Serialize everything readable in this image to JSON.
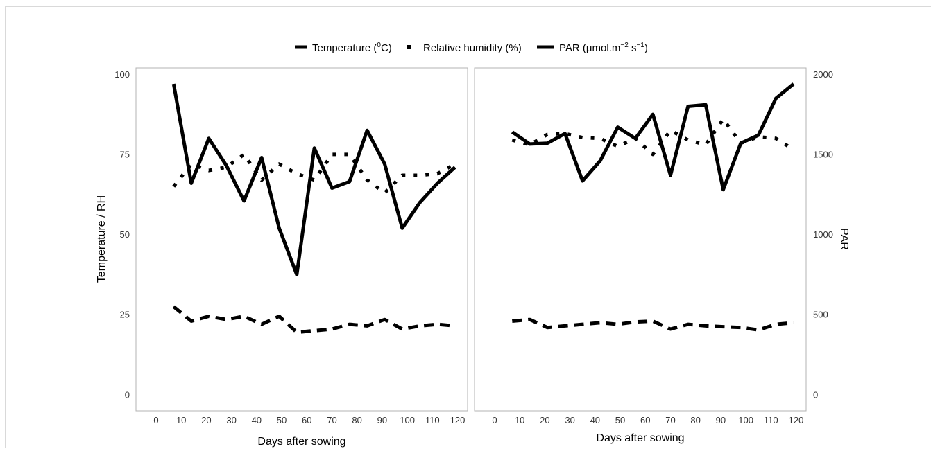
{
  "chart_data": [
    {
      "panel": "left",
      "type": "line",
      "xlabel": "Days after sowing",
      "ylabel": "Temperature / RH",
      "xlim": [
        -8,
        124
      ],
      "ylim": [
        -5,
        102
      ],
      "xticks": [
        "0",
        "10",
        "20",
        "30",
        "40",
        "50",
        "60",
        "70",
        "80",
        "90",
        "100",
        "110",
        "120"
      ],
      "yticks": [
        "0",
        "25",
        "50",
        "75",
        "100"
      ],
      "x": [
        7,
        14,
        21,
        28,
        35,
        42,
        49,
        56,
        63,
        70,
        77,
        84,
        91,
        98,
        105,
        112,
        119
      ],
      "series": [
        {
          "name": "Temperature (⁰C)",
          "style": "dashed",
          "values": [
            27.5,
            23.0,
            24.5,
            23.5,
            24.5,
            22.0,
            24.5,
            19.5,
            20.0,
            20.5,
            22.0,
            21.5,
            23.5,
            20.5,
            21.5,
            22.0,
            21.5
          ]
        },
        {
          "name": "Relative humidity (%)",
          "style": "dotted",
          "values": [
            65,
            72,
            70,
            71,
            75,
            67,
            72,
            69,
            67,
            75,
            75,
            67,
            63,
            68.5,
            68.5,
            69,
            72
          ]
        },
        {
          "name": "PAR (μmol.m⁻² s⁻¹)",
          "style": "solid",
          "values": [
            97,
            66,
            80,
            71.5,
            60.5,
            74,
            52,
            37.5,
            77,
            64.5,
            66.5,
            82.5,
            72,
            52,
            60,
            66,
            71
          ]
        }
      ]
    },
    {
      "panel": "right",
      "type": "line",
      "xlabel": "Days after sowing",
      "ylabel": "PAR",
      "xlim": [
        -8,
        124
      ],
      "ylim": [
        -100,
        2040
      ],
      "xticks": [
        "0",
        "10",
        "20",
        "30",
        "40",
        "50",
        "60",
        "70",
        "80",
        "90",
        "100",
        "110",
        "120"
      ],
      "yticks": [
        "0",
        "500",
        "1000",
        "1500",
        "2000"
      ],
      "x": [
        7,
        14,
        21,
        28,
        35,
        42,
        49,
        56,
        63,
        70,
        77,
        84,
        91,
        98,
        105,
        112,
        119
      ],
      "series": [
        {
          "name": "Temperature (⁰C)",
          "style": "dashed",
          "values": [
            460,
            470,
            420,
            430,
            440,
            450,
            440,
            455,
            460,
            410,
            440,
            430,
            425,
            420,
            405,
            440,
            450
          ]
        },
        {
          "name": "Relative humidity (%)",
          "style": "dotted",
          "values": [
            1590,
            1560,
            1625,
            1630,
            1605,
            1600,
            1550,
            1600,
            1500,
            1650,
            1590,
            1560,
            1720,
            1570,
            1610,
            1600,
            1530
          ]
        },
        {
          "name": "PAR (μmol.m⁻² s⁻¹)",
          "style": "solid",
          "values": [
            1640,
            1565,
            1570,
            1630,
            1335,
            1460,
            1670,
            1600,
            1750,
            1370,
            1800,
            1810,
            1280,
            1570,
            1620,
            1850,
            1940
          ]
        }
      ]
    }
  ],
  "legend": {
    "placement": "top",
    "items": [
      {
        "label": "Temperature (",
        "sup": "0",
        "tail": "C)",
        "style": "dashed"
      },
      {
        "label": "Relative humidity (%)",
        "sup": "",
        "tail": "",
        "style": "dotted"
      },
      {
        "label": "PAR (μmol.m",
        "sup": "−2",
        "tail": " s",
        "sup2": "−1",
        "tail2": ")",
        "style": "solid"
      }
    ]
  },
  "colors": {
    "line": "#000000",
    "panel_border": "#b3b3b3",
    "tick_text": "#333333"
  }
}
